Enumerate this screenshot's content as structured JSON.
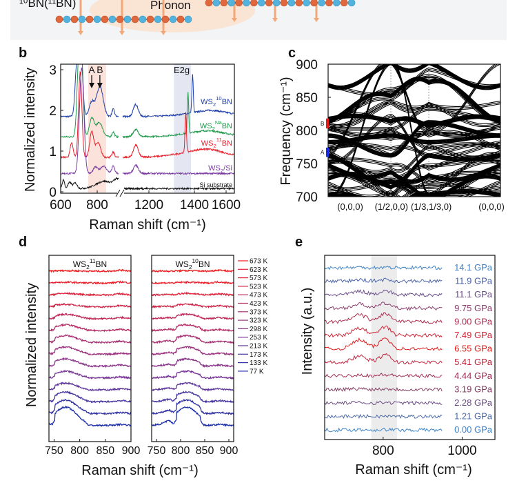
{
  "schematic": {
    "material_label": "¹⁰BN(¹¹BN)",
    "phonon_label": "Phonon",
    "colors": {
      "boron_atom": "#e0683c",
      "nitrogen_atom": "#52b4de",
      "arrow": "#f2a878",
      "glow": "#f9d9c4"
    }
  },
  "chart_data": [
    {
      "panel": "b",
      "type": "line",
      "xlabel": "Raman shift (cm⁻¹)",
      "ylabel": "Normalized intensity",
      "xticks": [
        "600",
        "800",
        "1200",
        "1400",
        "1600"
      ],
      "yticks": [
        "0",
        "1",
        "2",
        "3"
      ],
      "ylim": [
        -0.05,
        3.05
      ],
      "xlim": [
        600,
        1640
      ],
      "axis_break": [
        920,
        1000
      ],
      "annotations": [
        "A",
        "B",
        "E2g"
      ],
      "annotation_positions_cm": {
        "A": 770,
        "B": 815,
        "E2g": 1380
      },
      "shaded_regions": [
        {
          "range": [
            750,
            850
          ],
          "color": "#fbe3dc"
        },
        {
          "range": [
            1310,
            1385
          ],
          "color": "#e4e6f2"
        }
      ],
      "series": [
        {
          "name": "WS₂/¹⁰BN",
          "label_main": "WS",
          "label_sub": "2",
          "label_sup": "10",
          "label_tail": "BN",
          "color": "#1f3fa8",
          "offset": 1.85,
          "peaks": [
            [
              690,
              10,
              1.4
            ],
            [
              712,
              9,
              1.6
            ],
            [
              770,
              14,
              0.35
            ],
            [
              815,
              18,
              0.75
            ],
            [
              890,
              7,
              0.18
            ],
            [
              1100,
              18,
              0.3
            ],
            [
              1392,
              3,
              0.95
            ],
            [
              1500,
              110,
              0.15
            ]
          ]
        },
        {
          "name": "WS₂/ᴺᵃBN",
          "label_main": "WS",
          "label_sub": "2",
          "label_sup": "Na",
          "label_tail": "BN",
          "color": "#1e9a4a",
          "offset": 1.35,
          "peaks": [
            [
              700,
              10,
              2.0
            ],
            [
              718,
              8,
              1.4
            ],
            [
              770,
              13,
              0.45
            ],
            [
              812,
              18,
              0.35
            ],
            [
              890,
              7,
              0.12
            ],
            [
              1100,
              20,
              0.18
            ],
            [
              1372,
              3,
              1.0
            ],
            [
              1480,
              110,
              0.15
            ]
          ]
        },
        {
          "name": "WS₂/¹¹BN",
          "label_main": "WS",
          "label_sub": "2",
          "label_sup": "11",
          "label_tail": "BN",
          "color": "#e8202a",
          "offset": 0.85,
          "peaks": [
            [
              660,
              8,
              0.35
            ],
            [
              707,
              9,
              2.1
            ],
            [
              770,
              11,
              0.62
            ],
            [
              805,
              14,
              0.35
            ],
            [
              890,
              7,
              0.12
            ],
            [
              1100,
              18,
              0.3
            ],
            [
              1362,
              3,
              1.0
            ],
            [
              1470,
              110,
              0.2
            ]
          ]
        },
        {
          "name": "WS₂/Si",
          "label_main": "WS",
          "label_sub": "2",
          "label_sup": "",
          "label_tail": "/Si",
          "color": "#7a3aa0",
          "offset": 0.45,
          "peaks": [
            [
              715,
              12,
              2.6
            ],
            [
              790,
              12,
              0.15
            ],
            [
              835,
              18,
              0.18
            ],
            [
              890,
              8,
              0.18
            ],
            [
              1100,
              18,
              0.2
            ]
          ]
        },
        {
          "name": "Si substrate",
          "label_main": "Si substrate",
          "label_sub": "",
          "label_sup": "",
          "label_tail": "",
          "color": "#111111",
          "offset": 0.08,
          "peaks": [
            [
              615,
              6,
              0.22
            ],
            [
              650,
              10,
              0.15
            ],
            [
              680,
              10,
              0.14
            ],
            [
              840,
              45,
              0.18
            ],
            [
              915,
              20,
              0.2
            ]
          ]
        }
      ]
    },
    {
      "panel": "c",
      "type": "line",
      "ylabel": "Frequency (cm⁻¹)",
      "yticks": [
        "700",
        "750",
        "800",
        "850",
        "900"
      ],
      "ylim": [
        700,
        900
      ],
      "xticks": [
        "(0,0,0)",
        "(1/2,0,0)",
        "(1/3,1/3,0)",
        "(0,0,0)"
      ],
      "markers": [
        {
          "label": "A",
          "range": [
            760,
            774
          ],
          "color": "#1a2be8"
        },
        {
          "label": "B",
          "range": [
            803,
            818
          ],
          "color": "#e81a1a"
        }
      ],
      "bands_at_kpoints": [
        [
          866,
          900,
          900,
          866
        ],
        [
          866,
          855,
          890,
          866
        ],
        [
          812,
          860,
          880,
          812
        ],
        [
          812,
          845,
          875,
          812
        ],
        [
          810,
          850,
          870,
          810
        ],
        [
          808,
          840,
          838,
          810
        ],
        [
          805,
          842,
          836,
          840
        ],
        [
          800,
          800,
          830,
          815
        ],
        [
          815,
          812,
          805,
          816
        ],
        [
          812,
          808,
          800,
          812
        ],
        [
          803,
          800,
          798,
          805
        ],
        [
          800,
          795,
          795,
          802
        ],
        [
          780,
          790,
          780,
          790
        ],
        [
          770,
          770,
          760,
          775
        ],
        [
          768,
          760,
          790,
          770
        ],
        [
          765,
          740,
          775,
          765
        ],
        [
          760,
          720,
          760,
          760
        ],
        [
          755,
          725,
          745,
          755
        ],
        [
          750,
          745,
          720,
          750
        ],
        [
          748,
          700,
          740,
          748
        ],
        [
          745,
          735,
          730,
          745
        ],
        [
          740,
          720,
          700,
          740
        ],
        [
          735,
          715,
          712,
          735
        ],
        [
          730,
          700,
          725,
          730
        ],
        [
          725,
          712,
          690,
          725
        ],
        [
          718,
          705,
          700,
          720
        ],
        [
          712,
          722,
          705,
          712
        ],
        [
          705,
          690,
          718,
          705
        ],
        [
          700,
          680,
          700,
          700
        ],
        [
          760,
          900,
          700,
          760
        ],
        [
          700,
          900,
          800,
          900
        ],
        [
          750,
          820,
          760,
          780
        ],
        [
          790,
          760,
          810,
          790
        ],
        [
          772,
          785,
          770,
          772
        ]
      ]
    },
    {
      "panel": "d",
      "type": "line",
      "xlabel": "Raman shift (cm⁻¹)",
      "ylabel": "Normalized intensity",
      "subplots": [
        {
          "title_main": "WS",
          "title_sub": "2",
          "title_sup": "11",
          "title_tail": "BN",
          "xticks": [
            "750",
            "800",
            "850",
            "900"
          ],
          "xlim": [
            740,
            900
          ],
          "peak_center": 772,
          "peak_width": 22,
          "edge": 812
        },
        {
          "title_main": "WS",
          "title_sub": "2",
          "title_sup": "10",
          "title_tail": "BN",
          "xticks": [
            "750",
            "800",
            "850",
            "900"
          ],
          "xlim": [
            740,
            910
          ],
          "peak_center": 812,
          "peak_width": 24,
          "edge": 840
        }
      ],
      "series": [
        {
          "name": "673 K",
          "color": "#f01c1c",
          "peak": 0.05
        },
        {
          "name": "623 K",
          "color": "#ec1e28",
          "peak": 0.08
        },
        {
          "name": "573 K",
          "color": "#de2038",
          "peak": 0.15
        },
        {
          "name": "523 K",
          "color": "#d02446",
          "peak": 0.25
        },
        {
          "name": "473 K",
          "color": "#c02a58",
          "peak": 0.45
        },
        {
          "name": "423 K",
          "color": "#b42e66",
          "peak": 0.6
        },
        {
          "name": "373 K",
          "color": "#a83072",
          "peak": 0.7
        },
        {
          "name": "323 K",
          "color": "#9c327e",
          "peak": 0.75
        },
        {
          "name": "298 K",
          "color": "#8a348a",
          "peak": 0.75
        },
        {
          "name": "253 K",
          "color": "#763696",
          "peak": 0.7
        },
        {
          "name": "213 K",
          "color": "#5e369c",
          "peak": 0.7
        },
        {
          "name": "173 K",
          "color": "#4634a0",
          "peak": 1.0
        },
        {
          "name": "133 K",
          "color": "#3232a4",
          "peak": 1.4
        },
        {
          "name": "77 K",
          "color": "#1e30a8",
          "peak": 1.9
        }
      ]
    },
    {
      "panel": "e",
      "type": "line",
      "xlabel": "Raman shift (cm⁻¹)",
      "ylabel": "Intensity (a.u.)",
      "xticks": [
        "800",
        "1000"
      ],
      "xlim": [
        652,
        1083
      ],
      "data_range": [
        652,
        950
      ],
      "shaded_region": {
        "range": [
          770,
          835
        ],
        "color": "#ececec"
      },
      "series": [
        {
          "name": "14.1 GPa",
          "color": "#3f82c4",
          "peak": 0.05
        },
        {
          "name": "11.9 GPa",
          "color": "#4a62a8",
          "peak": 0.2
        },
        {
          "name": "11.1 GPa",
          "color": "#6a4c8a",
          "peak": 0.5
        },
        {
          "name": "9.75 GPa",
          "color": "#8a3c6c",
          "peak": 0.6
        },
        {
          "name": "9.00 GPa",
          "color": "#ac2c4c",
          "peak": 1.0
        },
        {
          "name": "7.49 GPa",
          "color": "#cf2636",
          "peak": 1.0
        },
        {
          "name": "6.55 GPa",
          "color": "#e21a1a",
          "peak": 1.3
        },
        {
          "name": "5.41 GPa",
          "color": "#c2223a",
          "peak": 0.9
        },
        {
          "name": "4.44 GPa",
          "color": "#a22c50",
          "peak": 0.15
        },
        {
          "name": "3.19 GPa",
          "color": "#843c62",
          "peak": 0.1
        },
        {
          "name": "2.28 GPa",
          "color": "#6a4c82",
          "peak": 0.05
        },
        {
          "name": "1.21 GPa",
          "color": "#4a6aa8",
          "peak": 0.03
        },
        {
          "name": "0.00 GPa",
          "color": "#3a82c8",
          "peak": 0.05
        }
      ]
    }
  ],
  "panel_labels": [
    "b",
    "c",
    "d",
    "e"
  ]
}
